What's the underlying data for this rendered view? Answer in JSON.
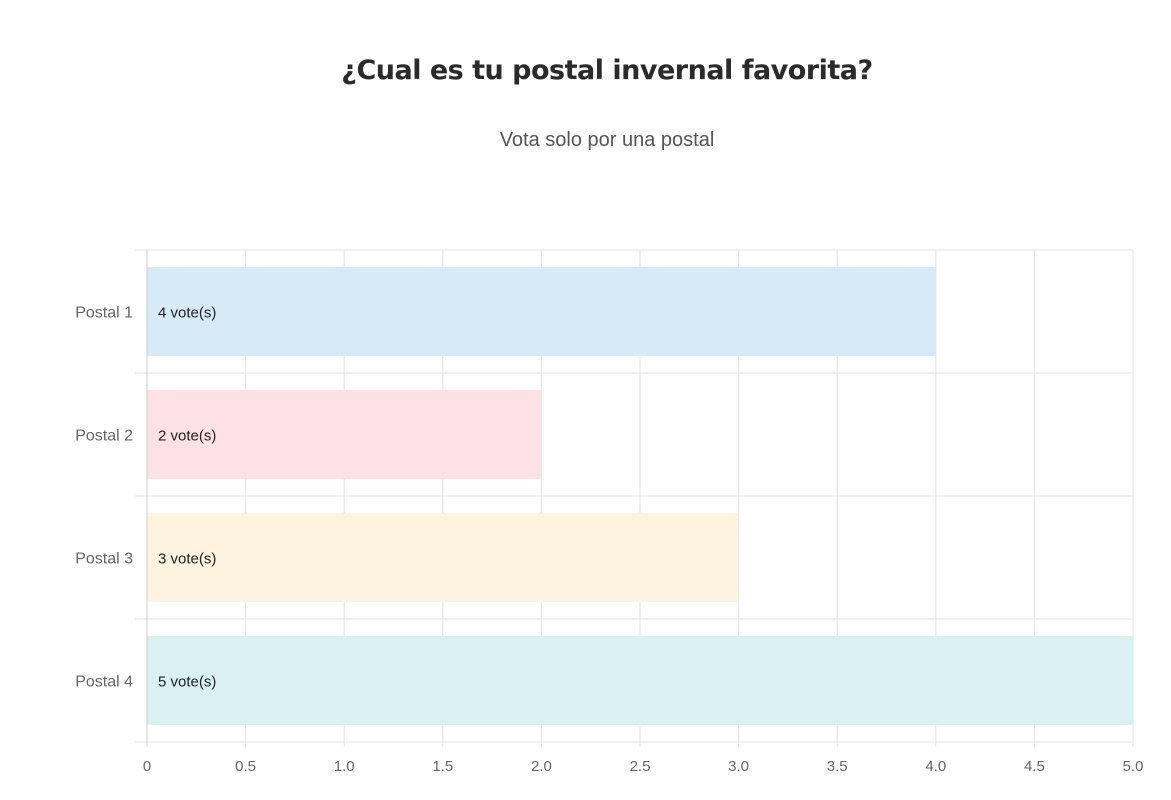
{
  "header": {
    "title": "¿Cual es tu postal invernal favorita?",
    "subtitle": "Vota solo por una postal"
  },
  "chart_data": {
    "type": "bar",
    "orientation": "horizontal",
    "categories": [
      "Postal 1",
      "Postal 2",
      "Postal 3",
      "Postal 4"
    ],
    "values": [
      4,
      2,
      3,
      5
    ],
    "data_labels": [
      "4 vote(s)",
      "2 vote(s)",
      "3 vote(s)",
      "5 vote(s)"
    ],
    "bar_colors": [
      "#d6eaf8",
      "#fde1e7",
      "#fef3de",
      "#daf1f3"
    ],
    "title": "¿Cual es tu postal invernal favorita?",
    "subtitle": "Vota solo por una postal",
    "xlabel": "",
    "ylabel": "",
    "xlim": [
      0,
      5
    ],
    "x_ticks": [
      "0",
      "0.5",
      "1.0",
      "1.5",
      "2.0",
      "2.5",
      "3.0",
      "3.5",
      "4.0",
      "4.5",
      "5.0"
    ],
    "grid": true,
    "legend": "none"
  }
}
